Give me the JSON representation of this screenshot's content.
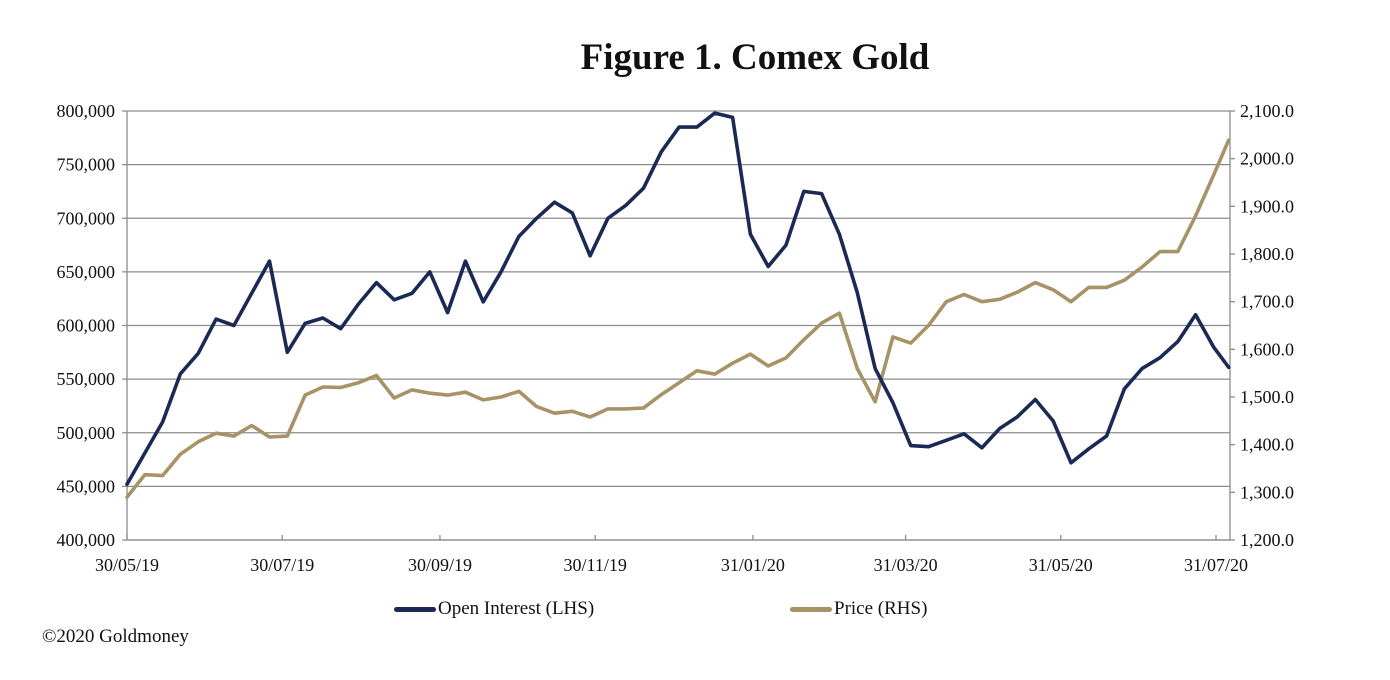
{
  "chart_data": {
    "type": "line",
    "title": "Figure 1. Comex Gold",
    "x_tick_labels": [
      {
        "date": "2019-05-30",
        "label": "30/05/19"
      },
      {
        "date": "2019-07-30",
        "label": "30/07/19"
      },
      {
        "date": "2019-09-30",
        "label": "30/09/19"
      },
      {
        "date": "2019-11-30",
        "label": "30/11/19"
      },
      {
        "date": "2020-01-31",
        "label": "31/01/20"
      },
      {
        "date": "2020-03-31",
        "label": "31/03/20"
      },
      {
        "date": "2020-05-31",
        "label": "31/05/20"
      },
      {
        "date": "2020-07-31",
        "label": "31/07/20"
      }
    ],
    "y_left": {
      "min": 400000,
      "max": 800000,
      "step": 50000,
      "tick_labels": [
        "400,000",
        "450,000",
        "500,000",
        "550,000",
        "600,000",
        "650,000",
        "700,000",
        "750,000",
        "800,000"
      ]
    },
    "y_right": {
      "min": 1200,
      "max": 2100,
      "step": 100,
      "tick_labels": [
        "1,200.0",
        "1,300.0",
        "1,400.0",
        "1,500.0",
        "1,600.0",
        "1,700.0",
        "1,800.0",
        "1,900.0",
        "2,000.0",
        "2,100.0"
      ]
    },
    "grid": true,
    "legend_position": "bottom",
    "x": [
      "2019-05-30",
      "2019-06-06",
      "2019-06-13",
      "2019-06-20",
      "2019-06-27",
      "2019-07-04",
      "2019-07-11",
      "2019-07-18",
      "2019-07-25",
      "2019-08-01",
      "2019-08-08",
      "2019-08-15",
      "2019-08-22",
      "2019-08-29",
      "2019-09-05",
      "2019-09-12",
      "2019-09-19",
      "2019-09-26",
      "2019-10-03",
      "2019-10-10",
      "2019-10-17",
      "2019-10-24",
      "2019-10-31",
      "2019-11-07",
      "2019-11-14",
      "2019-11-21",
      "2019-11-28",
      "2019-12-05",
      "2019-12-12",
      "2019-12-19",
      "2019-12-26",
      "2020-01-02",
      "2020-01-09",
      "2020-01-16",
      "2020-01-23",
      "2020-01-30",
      "2020-02-06",
      "2020-02-13",
      "2020-02-20",
      "2020-02-27",
      "2020-03-05",
      "2020-03-12",
      "2020-03-19",
      "2020-03-26",
      "2020-04-02",
      "2020-04-09",
      "2020-04-16",
      "2020-04-23",
      "2020-04-30",
      "2020-05-07",
      "2020-05-14",
      "2020-05-21",
      "2020-05-28",
      "2020-06-04",
      "2020-06-11",
      "2020-06-18",
      "2020-06-25",
      "2020-07-02",
      "2020-07-09",
      "2020-07-16",
      "2020-07-23",
      "2020-07-30",
      "2020-08-05"
    ],
    "series": [
      {
        "name": "Open Interest (LHS)",
        "axis": "left",
        "color": "#1b2a55",
        "values": [
          452000,
          481000,
          510000,
          555000,
          574000,
          606000,
          600000,
          630000,
          660000,
          575000,
          602000,
          607000,
          597000,
          620000,
          640000,
          624000,
          630000,
          650000,
          612000,
          660000,
          622000,
          650000,
          683000,
          700000,
          715000,
          705000,
          665000,
          700000,
          712000,
          728000,
          762000,
          785000,
          785000,
          798000,
          794000,
          685000,
          655000,
          675000,
          725000,
          723000,
          685000,
          631000,
          560000,
          528000,
          488000,
          487000,
          493000,
          499000,
          486000,
          504000,
          515000,
          531000,
          511000,
          472000,
          485000,
          497000,
          541000,
          560000,
          570000,
          585000,
          610000,
          580000,
          561000
        ]
      },
      {
        "name": "Price (RHS)",
        "axis": "right",
        "color": "#a69467",
        "values": [
          1290,
          1337,
          1335,
          1380,
          1406,
          1424,
          1418,
          1440,
          1416,
          1418,
          1504,
          1521,
          1520,
          1530,
          1545,
          1498,
          1515,
          1508,
          1504,
          1510,
          1494,
          1500,
          1512,
          1480,
          1466,
          1470,
          1458,
          1475,
          1475,
          1477,
          1505,
          1530,
          1555,
          1548,
          1571,
          1590,
          1565,
          1582,
          1620,
          1655,
          1676,
          1560,
          1490,
          1626,
          1613,
          1650,
          1700,
          1715,
          1700,
          1705,
          1720,
          1740,
          1725,
          1700,
          1730,
          1730,
          1745,
          1773,
          1805,
          1805,
          1880,
          1965,
          2039
        ]
      }
    ]
  },
  "footer": {
    "copyright": "©2020 Goldmoney"
  }
}
